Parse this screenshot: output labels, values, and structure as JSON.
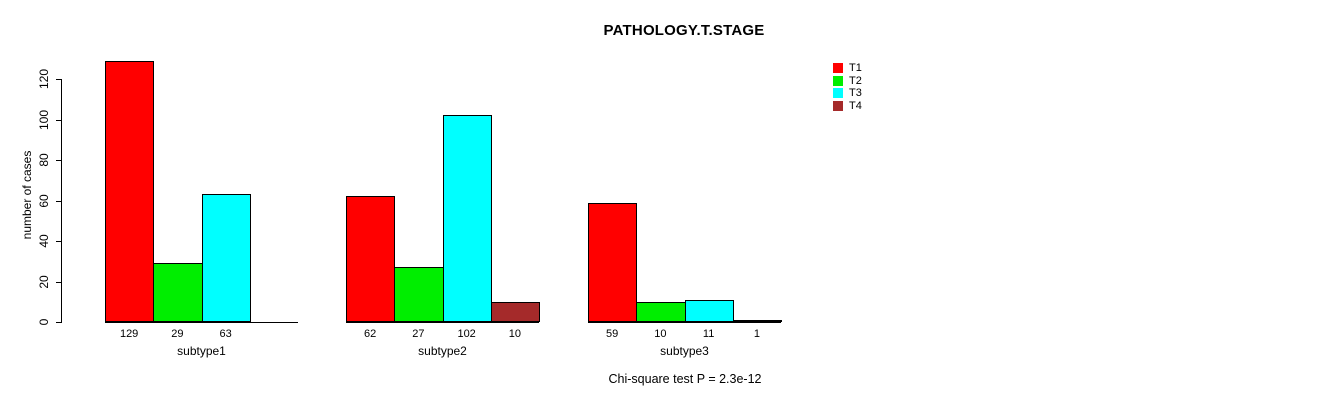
{
  "chart_data": {
    "type": "bar",
    "title": "PATHOLOGY.T.STAGE",
    "ylabel": "number of cases",
    "xlabel": "",
    "categories": [
      "subtype1",
      "subtype2",
      "subtype3"
    ],
    "series": [
      {
        "name": "T1",
        "color": "#ff0000",
        "values": [
          129,
          62,
          59
        ]
      },
      {
        "name": "T2",
        "color": "#00ee00",
        "values": [
          29,
          27,
          10
        ]
      },
      {
        "name": "T3",
        "color": "#00ffff",
        "values": [
          63,
          102,
          11
        ]
      },
      {
        "name": "T4",
        "color": "#a52a2a",
        "values": [
          0,
          10,
          1
        ]
      }
    ],
    "y_ticks": [
      0,
      20,
      40,
      60,
      80,
      100,
      120
    ],
    "ylim": [
      0,
      130
    ],
    "grid": false,
    "legend_position": "right",
    "value_labels_shown": true,
    "annotation": "Chi-square test P = 2.3e-12"
  },
  "colors": {
    "axis": "#000000",
    "text": "#000000",
    "background": "#ffffff"
  }
}
